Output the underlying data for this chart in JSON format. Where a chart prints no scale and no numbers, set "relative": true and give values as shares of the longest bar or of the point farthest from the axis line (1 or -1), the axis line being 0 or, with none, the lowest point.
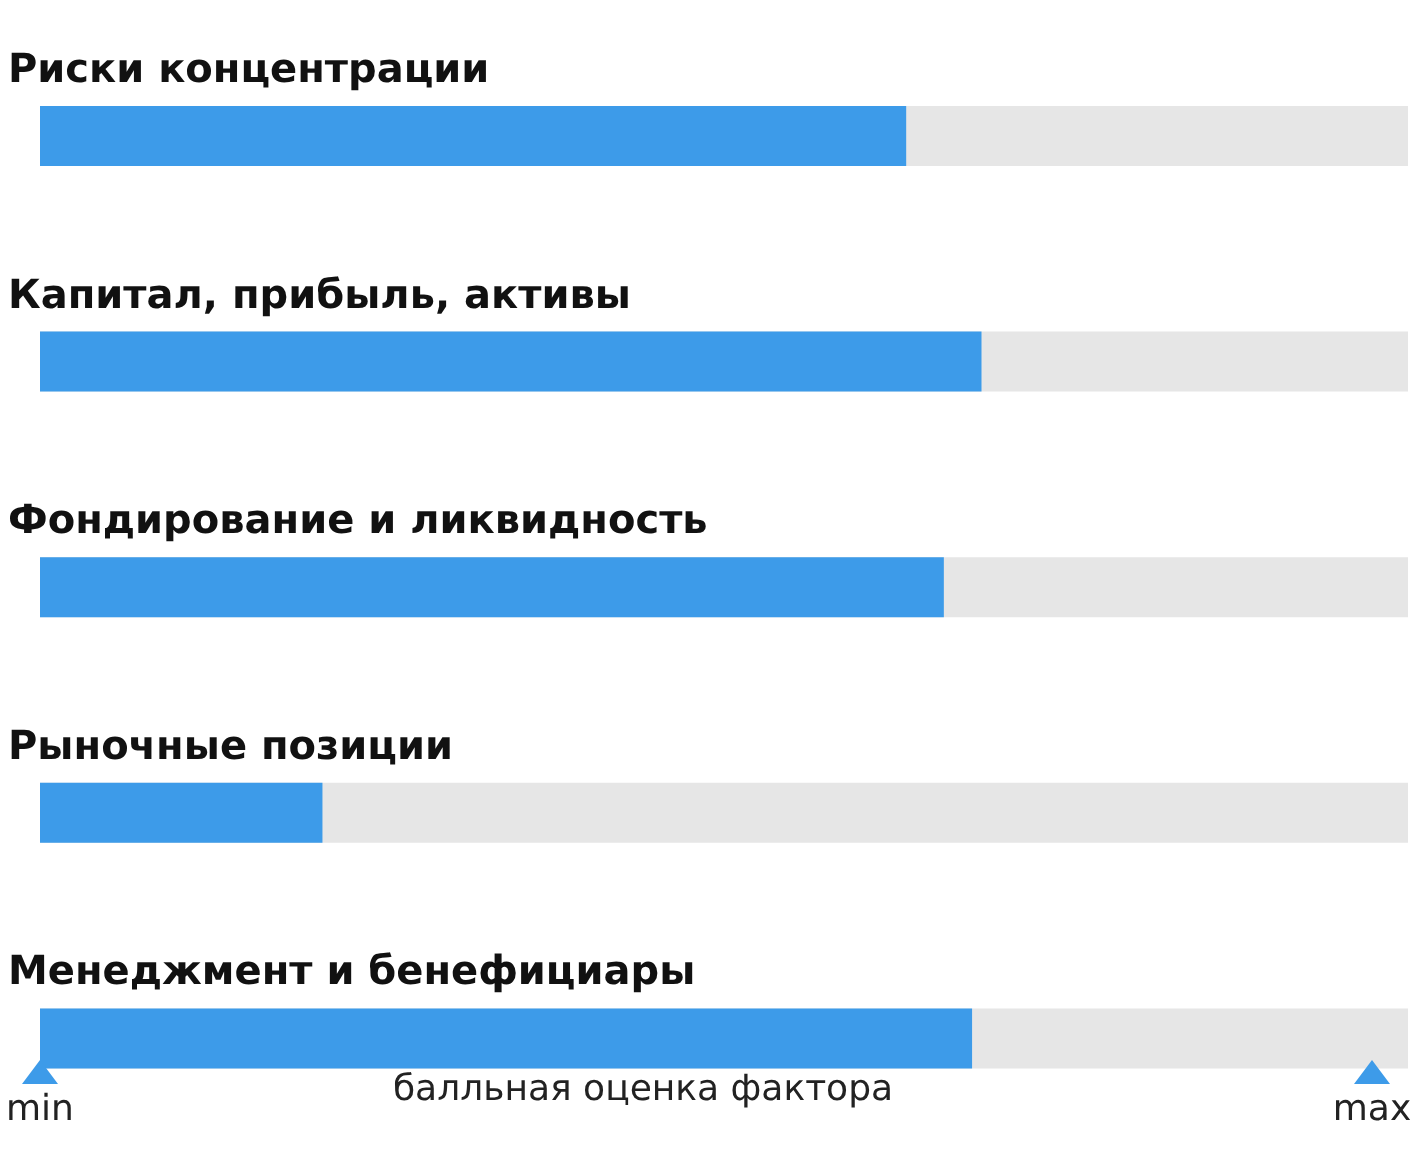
{
  "chart_data": {
    "type": "bar",
    "orientation": "horizontal",
    "relative": true,
    "categories": [
      "Риски концентрации",
      "Капитал, прибыль, активы",
      "Фондирование и ликвидность",
      "Рыночные позиции",
      "Менеджмент и бенефициары"
    ],
    "values": [
      0.92,
      1,
      0.96,
      0.3,
      0.99
    ],
    "color": "#3d9be9",
    "xlabel": "балльная оценка фактора",
    "annotations": [
      "min",
      "max"
    ],
    "grid": false,
    "legend": false
  }
}
